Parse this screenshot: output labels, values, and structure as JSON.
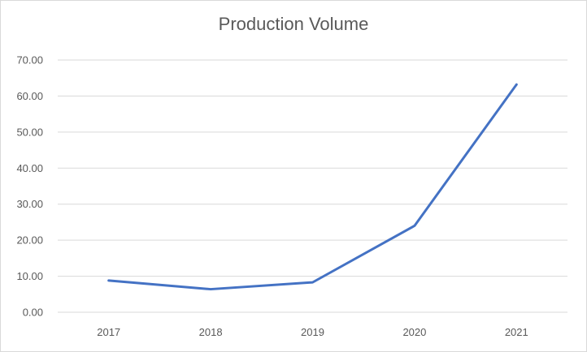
{
  "chart_data": {
    "type": "line",
    "title": "Production Volume",
    "xlabel": "",
    "ylabel": "",
    "categories": [
      "2017",
      "2018",
      "2019",
      "2020",
      "2021"
    ],
    "series": [
      {
        "values": [
          8.8,
          6.4,
          8.3,
          24.0,
          63.2
        ],
        "color": "#4472c4"
      }
    ],
    "ylim": [
      0,
      70
    ],
    "yticks": [
      "0.00",
      "10.00",
      "20.00",
      "30.00",
      "40.00",
      "50.00",
      "60.00",
      "70.00"
    ],
    "grid": true,
    "legend": "none"
  }
}
